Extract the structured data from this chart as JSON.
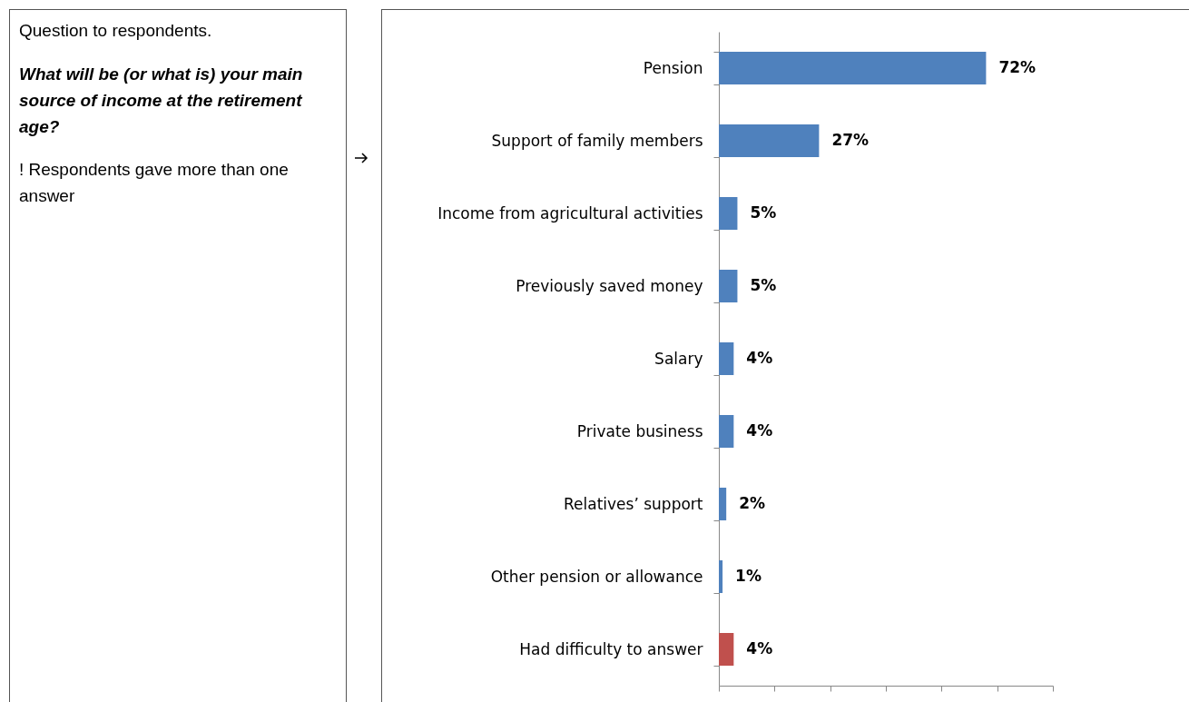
{
  "chart_data": {
    "type": "bar",
    "orientation": "horizontal",
    "title": "Question to respondents.",
    "subtitle": "What will be (or what is) your main source of income at the retirement age?",
    "annotations": [
      "! Respondents gave more than one answer"
    ],
    "categories": [
      "Pension",
      "Support of family members",
      "Income from agricultural activities",
      "Previously saved money",
      "Salary",
      "Private business",
      "Relatives’ support",
      "Other pension or allowance",
      "Had difficulty to answer"
    ],
    "values": [
      72,
      27,
      5,
      5,
      4,
      4,
      2,
      1,
      4
    ],
    "value_labels": [
      "72%",
      "27%",
      "5%",
      "5%",
      "4%",
      "4%",
      "2%",
      "1%",
      "4%"
    ],
    "colors": [
      "#4f81bd",
      "#4f81bd",
      "#4f81bd",
      "#4f81bd",
      "#4f81bd",
      "#4f81bd",
      "#4f81bd",
      "#4f81bd",
      "#c0504d"
    ],
    "xlim": [
      0,
      90
    ],
    "xticks": [
      {
        "value": 0,
        "label": null
      },
      {
        "value": 15,
        "label": null
      },
      {
        "value": 30,
        "label": null
      },
      {
        "value": 45,
        "label": null
      },
      {
        "value": 60,
        "label": null
      },
      {
        "value": 75,
        "label": null
      },
      {
        "value": 90,
        "label": null
      }
    ],
    "tick_labels": "y",
    "grid": false
  }
}
